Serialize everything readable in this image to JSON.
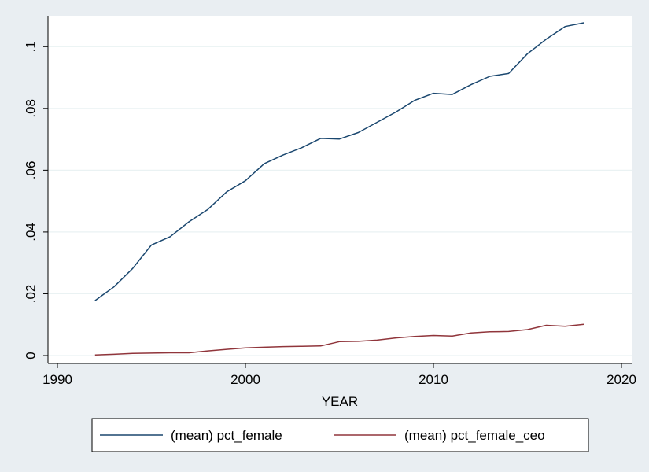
{
  "chart_data": {
    "type": "line",
    "title": "",
    "xlabel": "YEAR",
    "ylabel": "",
    "xlim": [
      1990,
      2020
    ],
    "ylim": [
      0,
      0.11
    ],
    "x_ticks": [
      1990,
      2000,
      2010,
      2020
    ],
    "x_tick_labels": [
      "1990",
      "2000",
      "2010",
      "2020"
    ],
    "y_ticks": [
      0,
      0.02,
      0.04,
      0.06,
      0.08,
      0.1
    ],
    "y_tick_labels": [
      "0",
      ".02",
      ".04",
      ".06",
      ".08",
      ".1"
    ],
    "grid": true,
    "legend_position": "bottom",
    "x": [
      1992,
      1993,
      1994,
      1995,
      1996,
      1997,
      1998,
      1999,
      2000,
      2001,
      2002,
      2003,
      2004,
      2005,
      2006,
      2007,
      2008,
      2009,
      2010,
      2011,
      2012,
      2013,
      2014,
      2015,
      2016,
      2017,
      2018
    ],
    "series": [
      {
        "name": "(mean) pct_female",
        "color": "#1a476f",
        "values": [
          0.0178,
          0.0222,
          0.0282,
          0.0358,
          0.0385,
          0.0433,
          0.0473,
          0.053,
          0.0566,
          0.0621,
          0.0649,
          0.0673,
          0.0703,
          0.0701,
          0.0722,
          0.0755,
          0.0788,
          0.0826,
          0.0849,
          0.0845,
          0.0877,
          0.0904,
          0.0913,
          0.0977,
          0.1024,
          0.1065,
          0.1077
        ]
      },
      {
        "name": "(mean) pct_female_ceo",
        "color": "#90353b",
        "values": [
          0.0002,
          0.0004,
          0.0007,
          0.0008,
          0.0009,
          0.0009,
          0.0015,
          0.002,
          0.0025,
          0.0027,
          0.0029,
          0.003,
          0.0031,
          0.0045,
          0.0046,
          0.005,
          0.0057,
          0.0062,
          0.0065,
          0.0063,
          0.0073,
          0.0077,
          0.0078,
          0.0084,
          0.0098,
          0.0095,
          0.0101
        ]
      }
    ]
  }
}
